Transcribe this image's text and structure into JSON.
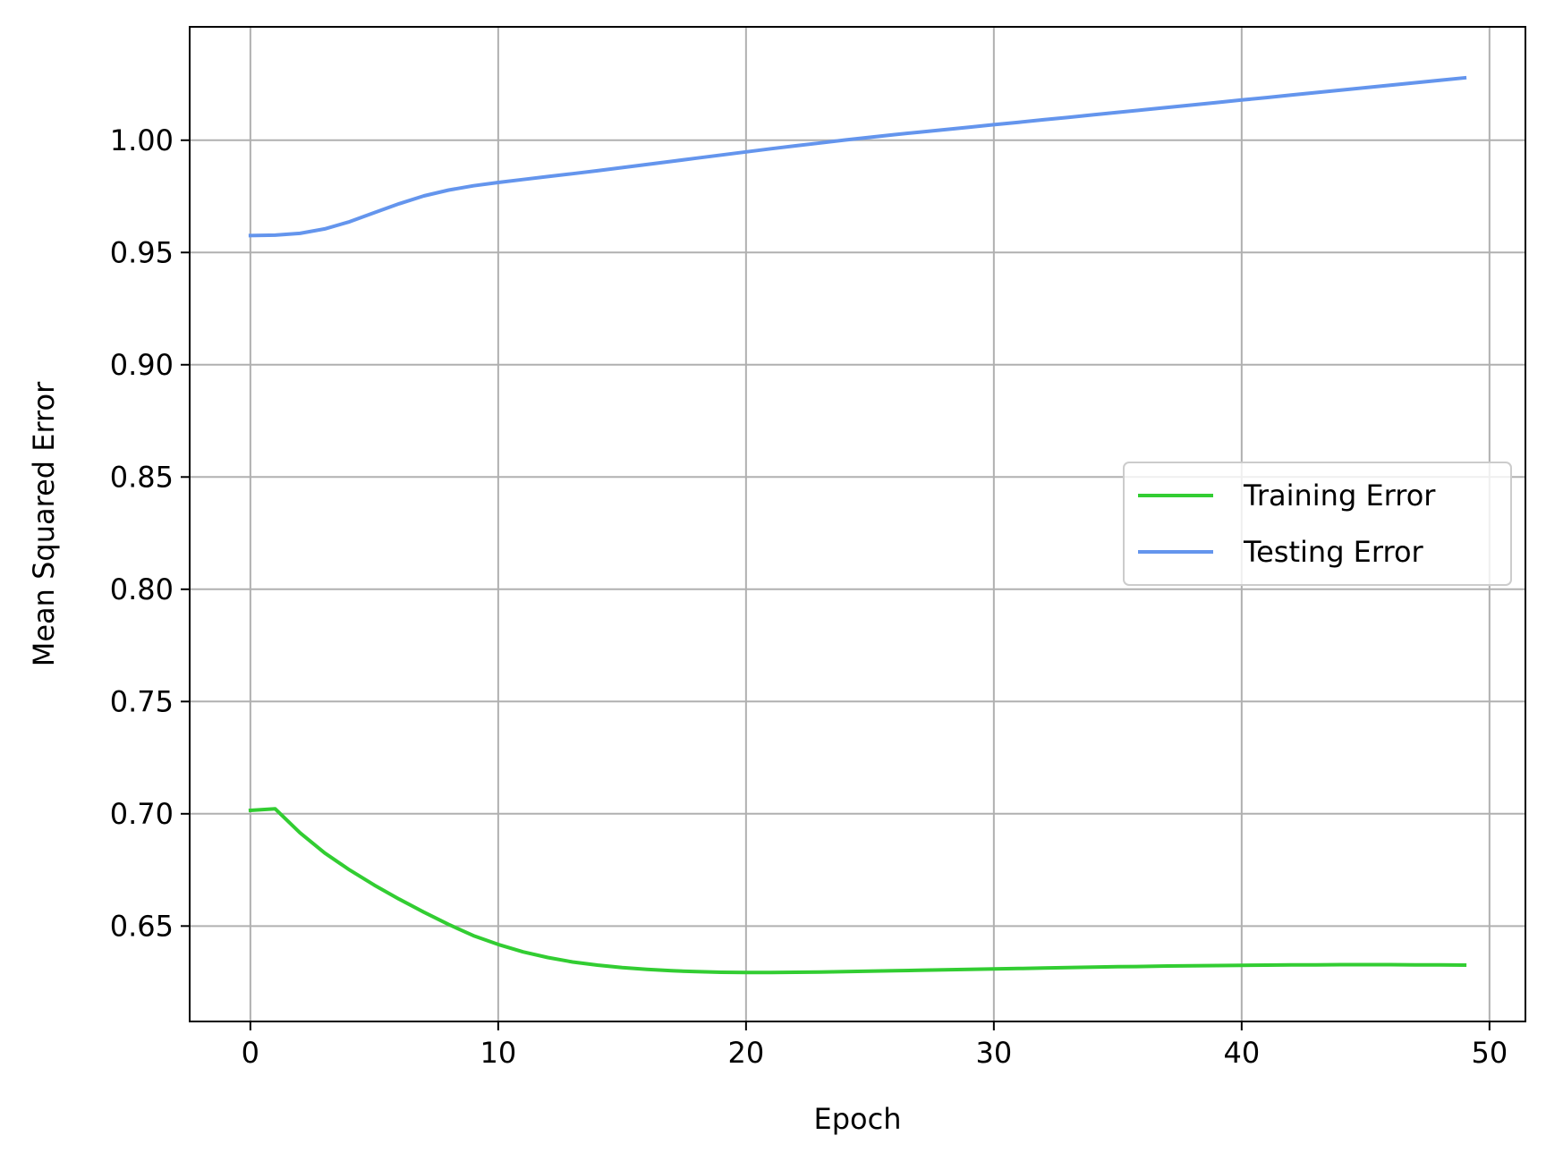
{
  "chart_data": {
    "type": "line",
    "title": "",
    "xlabel": "Epoch",
    "ylabel": "Mean Squared Error",
    "xlim": [
      -2.45,
      51.45
    ],
    "ylim": [
      0.6075,
      1.0505
    ],
    "xticks": [
      0,
      10,
      20,
      30,
      40,
      50
    ],
    "yticks": [
      0.65,
      0.7,
      0.75,
      0.8,
      0.85,
      0.9,
      0.95,
      1.0
    ],
    "xtick_labels": [
      "0",
      "10",
      "20",
      "30",
      "40",
      "50"
    ],
    "ytick_labels": [
      "0.65",
      "0.70",
      "0.75",
      "0.80",
      "0.85",
      "0.90",
      "0.95",
      "1.00"
    ],
    "grid": true,
    "legend_position": "center-right",
    "x": [
      0,
      1,
      2,
      3,
      4,
      5,
      6,
      7,
      8,
      9,
      10,
      11,
      12,
      13,
      14,
      15,
      16,
      17,
      18,
      19,
      20,
      21,
      22,
      23,
      24,
      25,
      26,
      27,
      28,
      29,
      30,
      31,
      32,
      33,
      34,
      35,
      36,
      37,
      38,
      39,
      40,
      41,
      42,
      43,
      44,
      45,
      46,
      47,
      48,
      49
    ],
    "series": [
      {
        "name": "Training Error",
        "color": "#32cd32",
        "values": [
          0.7015,
          0.7022,
          0.6915,
          0.6825,
          0.675,
          0.6682,
          0.662,
          0.6562,
          0.6507,
          0.6457,
          0.6418,
          0.6385,
          0.636,
          0.634,
          0.6326,
          0.6315,
          0.6307,
          0.6301,
          0.6297,
          0.6294,
          0.6293,
          0.6293,
          0.6294,
          0.6295,
          0.6297,
          0.6299,
          0.6301,
          0.6303,
          0.6305,
          0.6307,
          0.6309,
          0.6311,
          0.6313,
          0.6315,
          0.6317,
          0.6319,
          0.632,
          0.6322,
          0.6323,
          0.6324,
          0.6325,
          0.6326,
          0.6327,
          0.6327,
          0.6328,
          0.6328,
          0.6328,
          0.6327,
          0.6327,
          0.6326
        ]
      },
      {
        "name": "Testing Error",
        "color": "#6495ed",
        "values": [
          0.9575,
          0.9577,
          0.9585,
          0.9605,
          0.9637,
          0.9677,
          0.9717,
          0.9752,
          0.9778,
          0.9797,
          0.9812,
          0.9825,
          0.9838,
          0.9851,
          0.9864,
          0.9878,
          0.9892,
          0.9906,
          0.992,
          0.9934,
          0.9948,
          0.9962,
          0.9975,
          0.9988,
          1.0001,
          1.0013,
          1.0025,
          1.0036,
          1.0047,
          1.0058,
          1.0069,
          1.008,
          1.0091,
          1.0102,
          1.0113,
          1.0124,
          1.0135,
          1.0146,
          1.0157,
          1.0168,
          1.0179,
          1.019,
          1.0201,
          1.0212,
          1.0223,
          1.0234,
          1.0245,
          1.0256,
          1.0267,
          1.0278
        ]
      }
    ]
  }
}
